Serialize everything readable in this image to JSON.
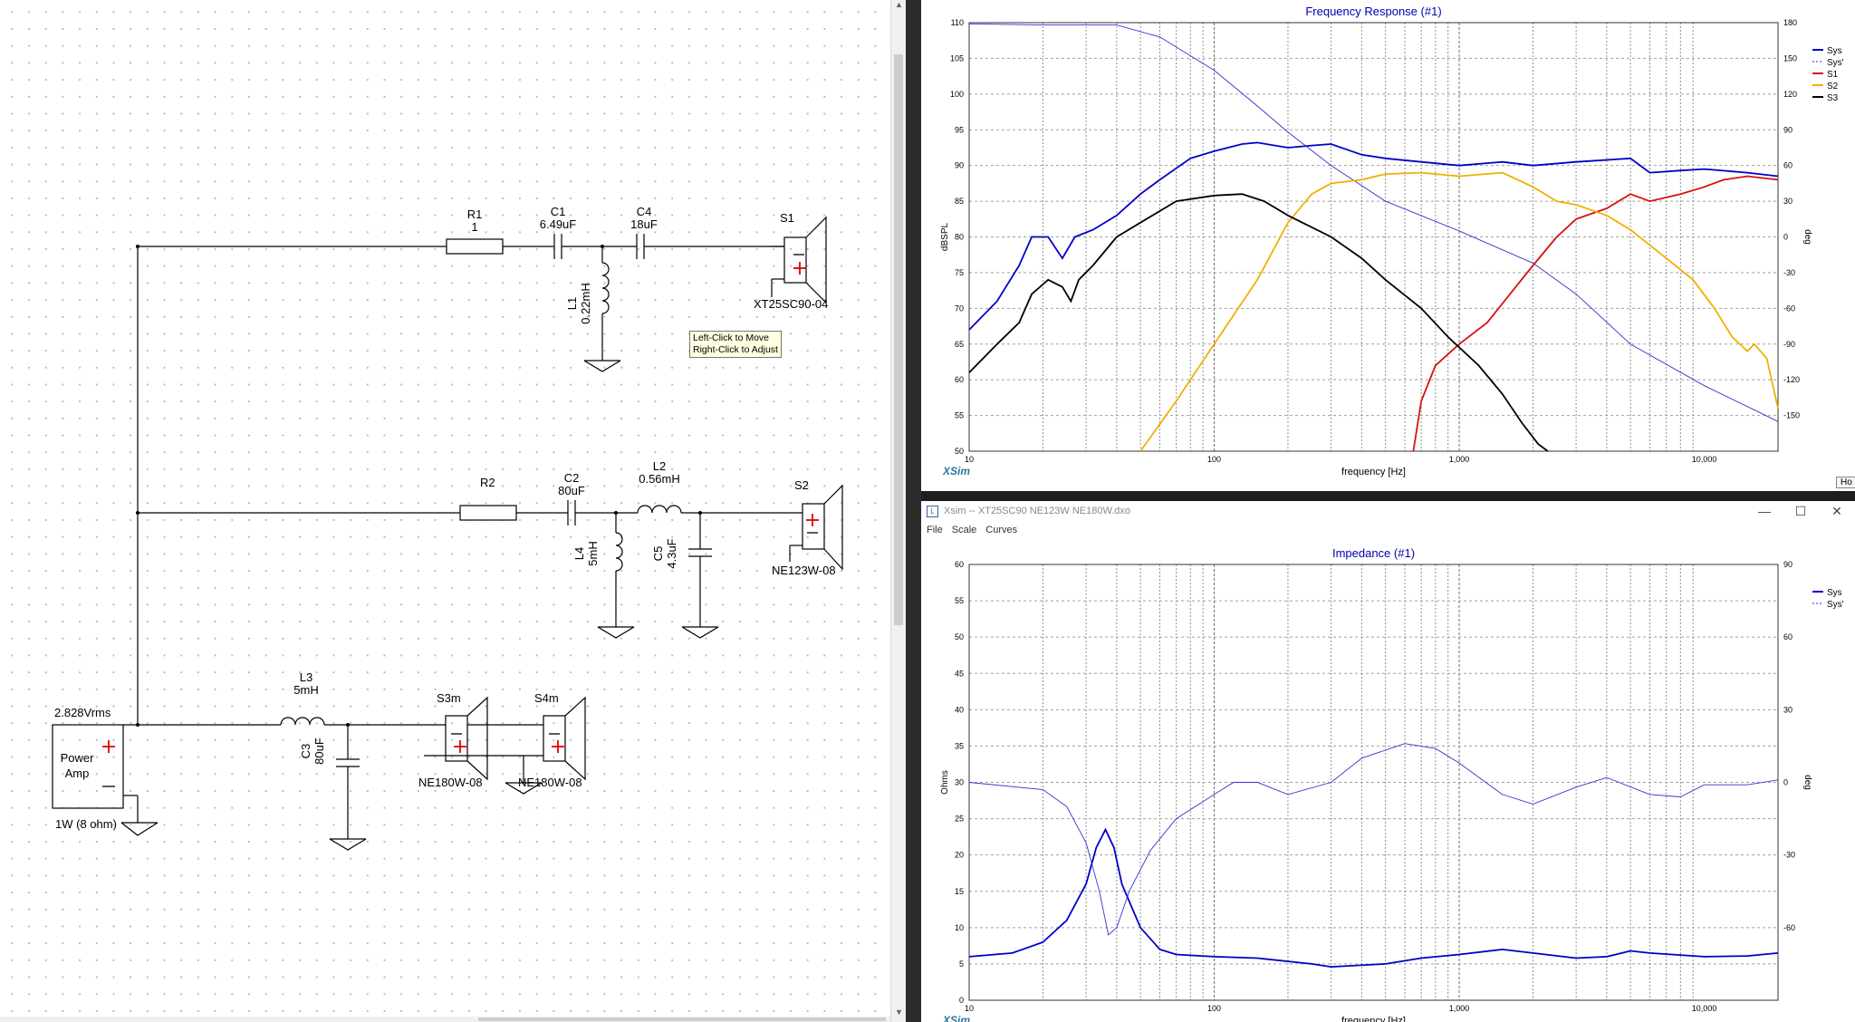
{
  "schematic": {
    "components": {
      "r1": {
        "name": "R1",
        "value": "1"
      },
      "c1": {
        "name": "C1",
        "value": "6.49uF"
      },
      "c4": {
        "name": "C4",
        "value": "18uF"
      },
      "l1": {
        "name": "L1",
        "value": "0.22mH"
      },
      "s1": {
        "name": "S1",
        "model": "XT25SC90-04"
      },
      "r2": {
        "name": "R2"
      },
      "c2": {
        "name": "C2",
        "value": "80uF"
      },
      "l2": {
        "name": "L2",
        "value": "0.56mH"
      },
      "l4": {
        "name": "L4",
        "value": "5mH"
      },
      "c5": {
        "name": "C5",
        "value": "4.3uF"
      },
      "s2": {
        "name": "S2",
        "model": "NE123W-08"
      },
      "l3": {
        "name": "L3",
        "value": "5mH"
      },
      "c3": {
        "name": "C3",
        "value": "80uF"
      },
      "s3m": {
        "name": "S3m",
        "model": "NE180W-08"
      },
      "s4m": {
        "name": "S4m",
        "model": "NE180W-08"
      },
      "amp": {
        "line1": "Power",
        "line2": "Amp",
        "voltage": "2.828Vrms",
        "power": "1W (8 ohm)"
      }
    },
    "tooltip": {
      "line1": "Left-Click to Move",
      "line2": "Right-Click to Adjust"
    },
    "colors": {
      "plus": "#e00000",
      "wire": "#000000"
    }
  },
  "freq_window": {
    "chart_data": {
      "type": "line",
      "title": "Frequency Response (#1)",
      "xlabel": "frequency [Hz]",
      "ylabel": "dBSPL",
      "y2label": "deg",
      "xscale": "log",
      "xlim": [
        10,
        20000
      ],
      "ylim": [
        50,
        110
      ],
      "y2lim": [
        -180,
        180
      ],
      "x_ticks": [
        "10",
        "100",
        "1,000",
        "10,000"
      ],
      "y_ticks": [
        50,
        55,
        60,
        65,
        70,
        75,
        80,
        85,
        90,
        95,
        100,
        105,
        110
      ],
      "y2_ticks": [
        -150,
        -120,
        -90,
        -60,
        -30,
        0,
        30,
        60,
        90,
        120,
        150,
        180
      ],
      "grid": true,
      "legend_position": "top-right",
      "series": [
        {
          "name": "Sys",
          "color": "#0000c8",
          "axis": "left",
          "points": [
            [
              10,
              67
            ],
            [
              13,
              71
            ],
            [
              16,
              76
            ],
            [
              18,
              80
            ],
            [
              21,
              80
            ],
            [
              24,
              77
            ],
            [
              27,
              80
            ],
            [
              32,
              81
            ],
            [
              40,
              83
            ],
            [
              50,
              86
            ],
            [
              60,
              88
            ],
            [
              80,
              91
            ],
            [
              100,
              92
            ],
            [
              130,
              93
            ],
            [
              150,
              93.2
            ],
            [
              200,
              92.5
            ],
            [
              250,
              92.8
            ],
            [
              300,
              93
            ],
            [
              400,
              91.5
            ],
            [
              500,
              91
            ],
            [
              700,
              90.5
            ],
            [
              1000,
              90
            ],
            [
              1500,
              90.5
            ],
            [
              2000,
              90
            ],
            [
              3000,
              90.5
            ],
            [
              5000,
              91
            ],
            [
              6000,
              89
            ],
            [
              8000,
              89.3
            ],
            [
              10000,
              89.5
            ],
            [
              15000,
              89
            ],
            [
              20000,
              88.5
            ]
          ]
        },
        {
          "name": "Sys'",
          "color": "#3333cc",
          "dashed": true,
          "axis": "right",
          "points": [
            [
              10,
              179
            ],
            [
              20,
              178
            ],
            [
              40,
              178
            ],
            [
              60,
              168
            ],
            [
              100,
              140
            ],
            [
              150,
              110
            ],
            [
              200,
              88
            ],
            [
              300,
              60
            ],
            [
              500,
              30
            ],
            [
              1000,
              5
            ],
            [
              2000,
              -22
            ],
            [
              3000,
              -48
            ],
            [
              5000,
              -90
            ],
            [
              10000,
              -125
            ],
            [
              20000,
              -155
            ]
          ]
        },
        {
          "name": "S1",
          "color": "#d81010",
          "axis": "left",
          "points": [
            [
              650,
              50
            ],
            [
              700,
              57
            ],
            [
              800,
              62
            ],
            [
              1000,
              65
            ],
            [
              1300,
              68
            ],
            [
              1700,
              73
            ],
            [
              2000,
              76
            ],
            [
              2500,
              80
            ],
            [
              3000,
              82.5
            ],
            [
              4000,
              84
            ],
            [
              5000,
              86
            ],
            [
              6000,
              85
            ],
            [
              8000,
              86
            ],
            [
              10000,
              87
            ],
            [
              12000,
              88
            ],
            [
              15000,
              88.5
            ],
            [
              20000,
              88
            ]
          ]
        },
        {
          "name": "S2",
          "color": "#f0b000",
          "axis": "left",
          "points": [
            [
              50,
              50
            ],
            [
              70,
              57
            ],
            [
              100,
              65
            ],
            [
              150,
              74
            ],
            [
              200,
              82
            ],
            [
              250,
              86
            ],
            [
              300,
              87.5
            ],
            [
              400,
              88
            ],
            [
              500,
              88.8
            ],
            [
              700,
              89
            ],
            [
              1000,
              88.5
            ],
            [
              1500,
              89
            ],
            [
              2000,
              87
            ],
            [
              2500,
              85
            ],
            [
              3000,
              84.5
            ],
            [
              4000,
              83
            ],
            [
              5000,
              81
            ],
            [
              7000,
              77
            ],
            [
              9000,
              74
            ],
            [
              11000,
              70
            ],
            [
              13000,
              66
            ],
            [
              15000,
              64
            ],
            [
              16000,
              65
            ],
            [
              18000,
              63
            ],
            [
              20000,
              56
            ]
          ]
        },
        {
          "name": "S3",
          "color": "#000000",
          "axis": "left",
          "points": [
            [
              10,
              61
            ],
            [
              13,
              65
            ],
            [
              16,
              68
            ],
            [
              18,
              72
            ],
            [
              21,
              74
            ],
            [
              24,
              73
            ],
            [
              26,
              71
            ],
            [
              28,
              74
            ],
            [
              32,
              76
            ],
            [
              40,
              80
            ],
            [
              50,
              82
            ],
            [
              70,
              85
            ],
            [
              100,
              85.8
            ],
            [
              130,
              86
            ],
            [
              160,
              85
            ],
            [
              200,
              83
            ],
            [
              300,
              80
            ],
            [
              400,
              77
            ],
            [
              500,
              74
            ],
            [
              700,
              70
            ],
            [
              900,
              66
            ],
            [
              1200,
              62
            ],
            [
              1500,
              58
            ],
            [
              1800,
              54
            ],
            [
              2100,
              51
            ],
            [
              2300,
              50
            ]
          ]
        }
      ]
    },
    "brand": "XSim"
  },
  "imp_window": {
    "titlebar_text": "Xsim -- XT25SC90 NE123W NE180W.dxo",
    "menu": [
      "File",
      "Scale",
      "Curves"
    ],
    "controls": {
      "min": "—",
      "max": "☐",
      "close": "✕"
    },
    "chart_data": {
      "type": "line",
      "title": "Impedance (#1)",
      "xlabel": "frequency [Hz]",
      "ylabel": "Ohms",
      "y2label": "deg",
      "xscale": "log",
      "xlim": [
        10,
        20000
      ],
      "ylim": [
        0,
        60
      ],
      "y2lim": [
        -90,
        90
      ],
      "x_ticks": [
        "10",
        "100",
        "1,000",
        "10,000"
      ],
      "y_ticks": [
        0,
        5,
        10,
        15,
        20,
        25,
        30,
        35,
        40,
        45,
        50,
        55,
        60
      ],
      "y2_ticks": [
        -60,
        -30,
        0,
        30,
        60,
        90
      ],
      "grid": true,
      "legend_position": "top-right",
      "series": [
        {
          "name": "Sys",
          "color": "#0000c8",
          "axis": "left",
          "points": [
            [
              10,
              6
            ],
            [
              15,
              6.5
            ],
            [
              20,
              8
            ],
            [
              25,
              11
            ],
            [
              30,
              16
            ],
            [
              33,
              21
            ],
            [
              36,
              23.5
            ],
            [
              39,
              21
            ],
            [
              42,
              16
            ],
            [
              50,
              10
            ],
            [
              60,
              7
            ],
            [
              70,
              6.3
            ],
            [
              100,
              6
            ],
            [
              150,
              5.8
            ],
            [
              250,
              5
            ],
            [
              300,
              4.6
            ],
            [
              500,
              5
            ],
            [
              700,
              5.8
            ],
            [
              1000,
              6.3
            ],
            [
              1500,
              7
            ],
            [
              2000,
              6.5
            ],
            [
              3000,
              5.8
            ],
            [
              4000,
              6
            ],
            [
              5000,
              6.8
            ],
            [
              6000,
              6.5
            ],
            [
              10000,
              6
            ],
            [
              15000,
              6.1
            ],
            [
              20000,
              6.5
            ]
          ]
        },
        {
          "name": "Sys'",
          "color": "#3333cc",
          "dashed": true,
          "axis": "right",
          "points": [
            [
              10,
              0
            ],
            [
              20,
              -3
            ],
            [
              25,
              -10
            ],
            [
              30,
              -25
            ],
            [
              34,
              -45
            ],
            [
              37,
              -63
            ],
            [
              40,
              -60
            ],
            [
              45,
              -45
            ],
            [
              55,
              -28
            ],
            [
              70,
              -15
            ],
            [
              100,
              -5
            ],
            [
              120,
              0
            ],
            [
              150,
              0
            ],
            [
              200,
              -5
            ],
            [
              300,
              0
            ],
            [
              400,
              10
            ],
            [
              600,
              16
            ],
            [
              800,
              14
            ],
            [
              1000,
              8
            ],
            [
              1500,
              -5
            ],
            [
              2000,
              -9
            ],
            [
              3000,
              -2
            ],
            [
              4000,
              2
            ],
            [
              6000,
              -5
            ],
            [
              8000,
              -6
            ],
            [
              10000,
              -1
            ],
            [
              15000,
              -1
            ],
            [
              20000,
              1
            ]
          ]
        }
      ]
    },
    "brand": "XSim",
    "hidden_button": "Ho"
  }
}
